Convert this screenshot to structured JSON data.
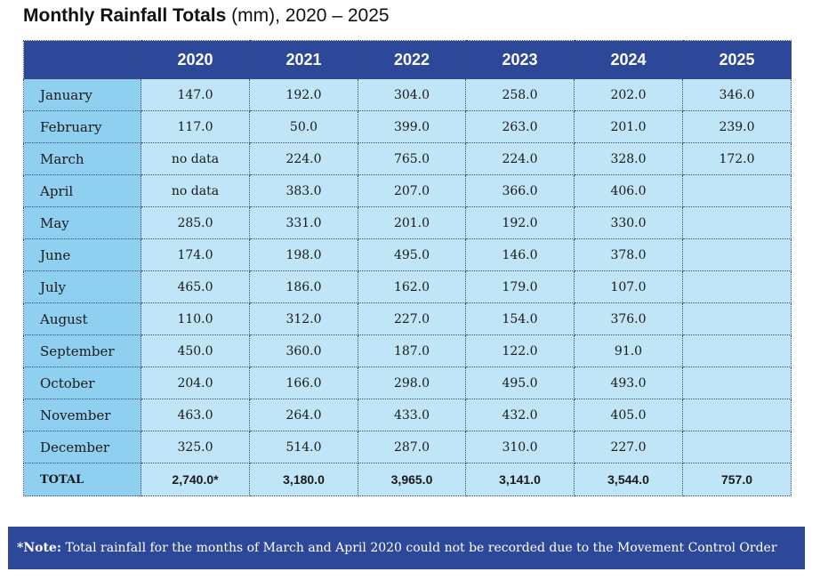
{
  "title": {
    "bold": "Monthly Rainfall Totals",
    "rest": " (mm), 2020 – 2025"
  },
  "table": {
    "header": [
      "",
      "2020",
      "2021",
      "2022",
      "2023",
      "2024",
      "2025"
    ],
    "rows": [
      {
        "month": "January",
        "values": [
          "147.0",
          "192.0",
          "304.0",
          "258.0",
          "202.0",
          "346.0"
        ]
      },
      {
        "month": "February",
        "values": [
          "117.0",
          "50.0",
          "399.0",
          "263.0",
          "201.0",
          "239.0"
        ]
      },
      {
        "month": "March",
        "values": [
          "no data",
          "224.0",
          "765.0",
          "224.0",
          "328.0",
          "172.0"
        ]
      },
      {
        "month": "April",
        "values": [
          "no data",
          "383.0",
          "207.0",
          "366.0",
          "406.0",
          ""
        ]
      },
      {
        "month": "May",
        "values": [
          "285.0",
          "331.0",
          "201.0",
          "192.0",
          "330.0",
          ""
        ]
      },
      {
        "month": "June",
        "values": [
          "174.0",
          "198.0",
          "495.0",
          "146.0",
          "378.0",
          ""
        ]
      },
      {
        "month": "July",
        "values": [
          "465.0",
          "186.0",
          "162.0",
          "179.0",
          "107.0",
          ""
        ]
      },
      {
        "month": "August",
        "values": [
          "110.0",
          "312.0",
          "227.0",
          "154.0",
          "376.0",
          ""
        ]
      },
      {
        "month": "September",
        "values": [
          "450.0",
          "360.0",
          "187.0",
          "122.0",
          "91.0",
          ""
        ]
      },
      {
        "month": "October",
        "values": [
          "204.0",
          "166.0",
          "298.0",
          "495.0",
          "493.0",
          ""
        ]
      },
      {
        "month": "November",
        "values": [
          "463.0",
          "264.0",
          "433.0",
          "432.0",
          "405.0",
          ""
        ]
      },
      {
        "month": "December",
        "values": [
          "325.0",
          "514.0",
          "287.0",
          "310.0",
          "227.0",
          ""
        ]
      }
    ],
    "total": {
      "label": "TOTAL",
      "values": [
        "2,740.0*",
        "3,180.0",
        "3,965.0",
        "3,141.0",
        "3,544.0",
        "757.0"
      ]
    }
  },
  "note": {
    "label": "*Note:",
    "text": " Total rainfall for the months of March and April 2020 could not be recorded due to the Movement Control Order"
  },
  "colors": {
    "header_bg": "#2d4899",
    "month_col_bg": "#8fcff0",
    "cell_bg": "#bfe5f7"
  }
}
